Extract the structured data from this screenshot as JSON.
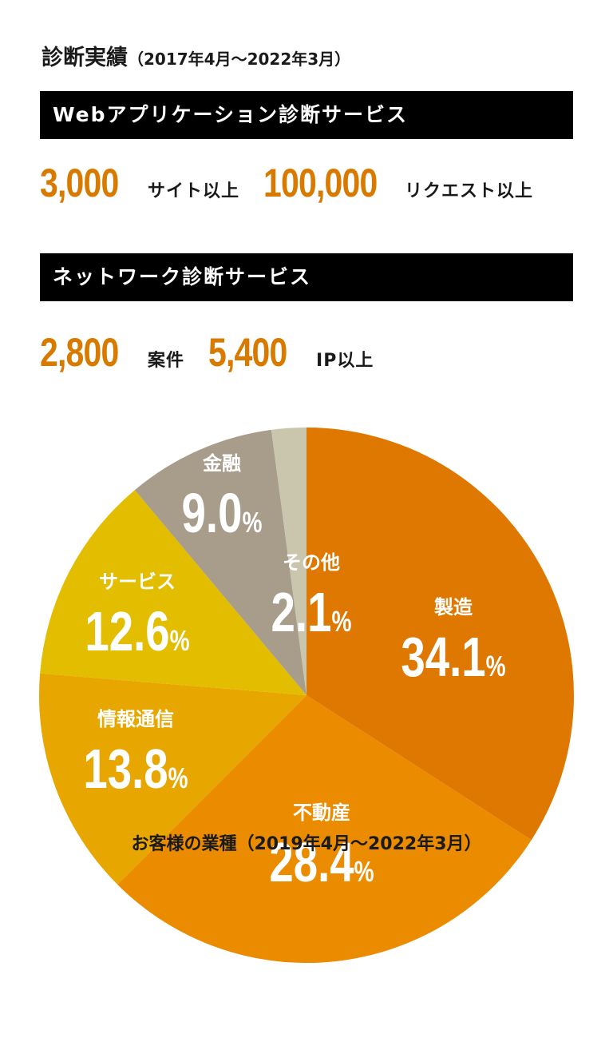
{
  "heading": {
    "title": "診断実績",
    "period": "（2017年4月～2022年3月）"
  },
  "web_section": {
    "bar_label": "Webアプリケーション診断サービス",
    "stats": [
      {
        "value": "3,000",
        "unit": "サイト以上"
      },
      {
        "value": "100,000",
        "unit": "リクエスト以上"
      }
    ]
  },
  "network_section": {
    "bar_label": "ネットワーク診断サービス",
    "stats": [
      {
        "value": "2,800",
        "unit": "案件"
      },
      {
        "value": "5,400",
        "unit": "IP以上"
      }
    ]
  },
  "colors": {
    "accent": "#d97a00",
    "bar_bg": "#000000"
  },
  "chart_data": {
    "type": "pie",
    "title": "お客様の業種（2019年4月～2022年3月）",
    "slices": [
      {
        "label": "製造",
        "value": 34.1,
        "display": "34.1",
        "color": "#de7800"
      },
      {
        "label": "不動産",
        "value": 28.4,
        "display": "28.4",
        "color": "#ea8b00"
      },
      {
        "label": "情報通信",
        "value": 13.8,
        "display": "13.8",
        "color": "#e8a600"
      },
      {
        "label": "サービス",
        "value": 12.6,
        "display": "12.6",
        "color": "#e3bd00"
      },
      {
        "label": "金融",
        "value": 9.0,
        "display": "9.0",
        "color": "#a89d8b"
      },
      {
        "label": "その他",
        "value": 2.1,
        "display": "2.1",
        "color": "#cac6ae"
      }
    ],
    "unit": "%"
  }
}
